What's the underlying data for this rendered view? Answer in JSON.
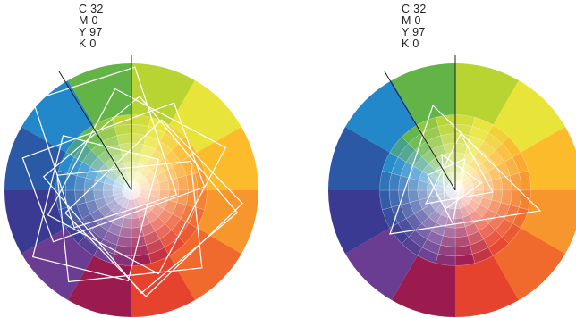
{
  "figures": [
    {
      "id": "left",
      "swatch_label": {
        "c": "C 32",
        "m": "M 0",
        "y": "Y 97",
        "k": "K 0"
      },
      "overlay": "rotated-rectangles"
    },
    {
      "id": "right",
      "swatch_label": {
        "c": "C 32",
        "m": "M 0",
        "y": "Y 97",
        "k": "K 0"
      },
      "overlay": "rotated-triangles"
    }
  ],
  "colors": {
    "outer_ring": [
      "#b8d433",
      "#e9e43a",
      "#fbbb2b",
      "#f7962c",
      "#ef6a2c",
      "#e6432f",
      "#9c1b4f",
      "#6b3d92",
      "#3a3a93",
      "#2c59a6",
      "#2288c9",
      "#62b446"
    ],
    "overlay_stroke": "#ffffff",
    "pointer_stroke": "#231f20",
    "text": "#231f20"
  }
}
